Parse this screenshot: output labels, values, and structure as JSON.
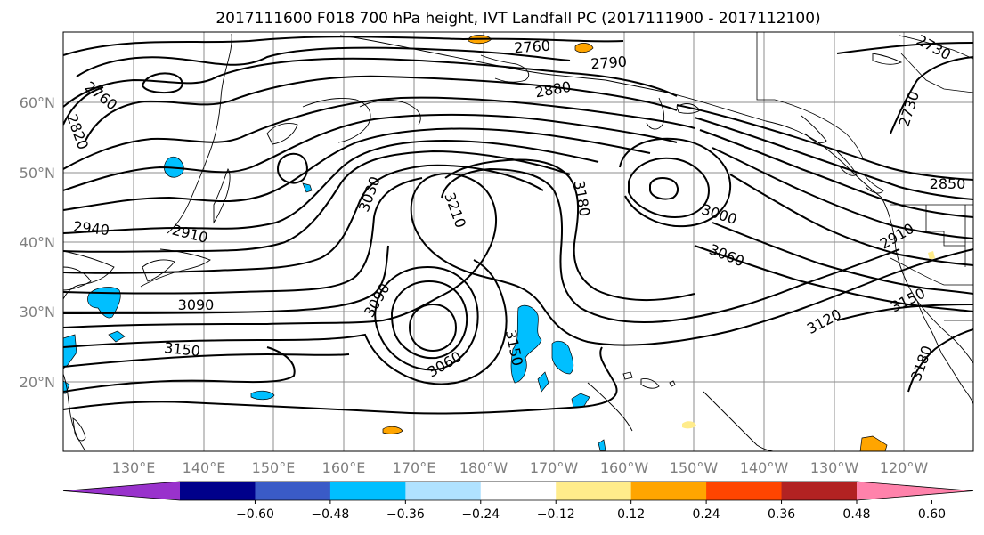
{
  "title": "2017111600 F018 700 hPa height, IVT Landfall PC (2017111900 - 2017112100)",
  "lat_labels": [
    "20°N",
    "30°N",
    "40°N",
    "50°N",
    "60°N"
  ],
  "lon_labels": [
    "130°E",
    "140°E",
    "150°E",
    "160°E",
    "170°E",
    "180°W",
    "170°W",
    "160°W",
    "150°W",
    "140°W",
    "130°W",
    "120°W"
  ],
  "contour_labels": [
    "2760",
    "2790",
    "2730",
    "2760",
    "2820",
    "2880",
    "2730",
    "2850",
    "2910",
    "2940",
    "3030",
    "3210",
    "3180",
    "3000",
    "3060",
    "2910",
    "3090",
    "3090",
    "3060",
    "3150",
    "3150",
    "3120",
    "3150",
    "3180"
  ],
  "colorbar": {
    "ticks": [
      "−0.60",
      "−0.48",
      "−0.36",
      "−0.24",
      "−0.12",
      "0.12",
      "0.24",
      "0.36",
      "0.48",
      "0.60"
    ],
    "colors": [
      "#9932cc",
      "#00008b",
      "#3a5bc7",
      "#00bfff",
      "#b0e2ff",
      "#ffffff",
      "#ffec8b",
      "#ffa500",
      "#ff4500",
      "#b22222",
      "#ff82ab"
    ]
  },
  "colors": {
    "neg_shade": "#00bfff",
    "pos_shade": "#ffa500",
    "pos_light": "#ffec8b"
  }
}
